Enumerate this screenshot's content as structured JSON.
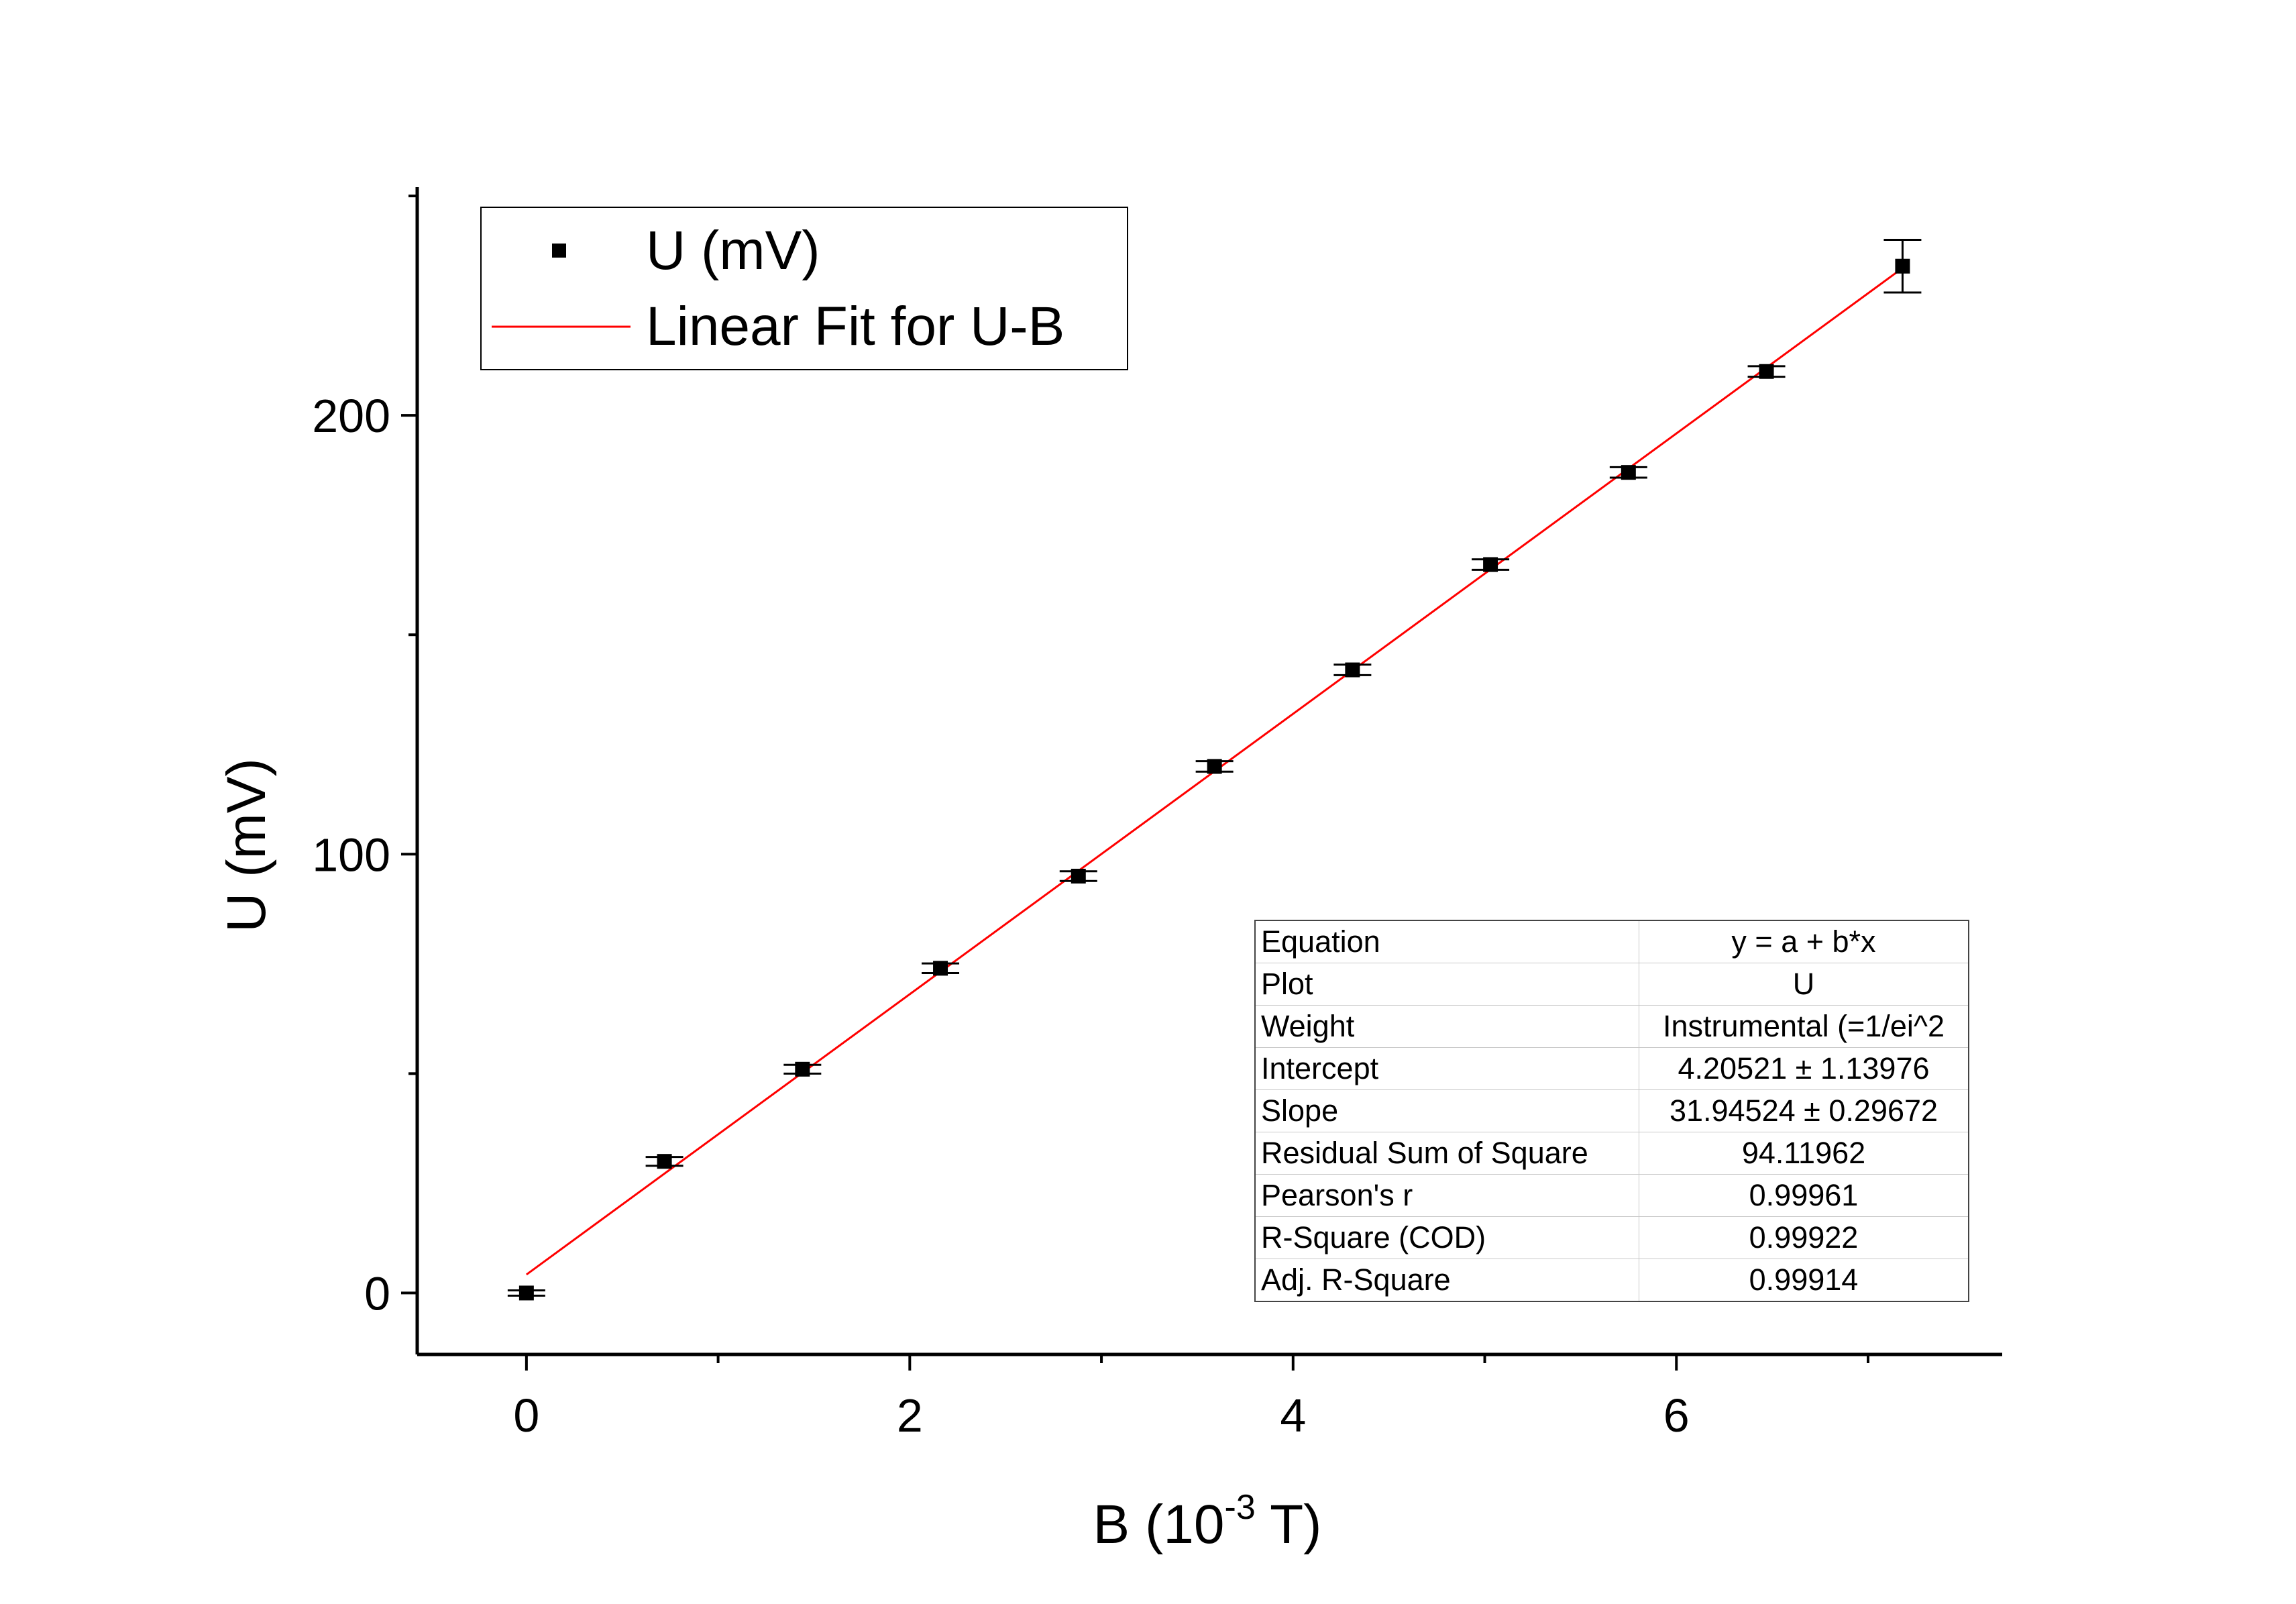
{
  "chart_data": {
    "type": "scatter",
    "xlabel": "B (10",
    "xlabel_sup": "-3",
    "xlabel_end": " T)",
    "ylabel": "U (mV)",
    "xlim": [
      -0.57,
      7.7
    ],
    "ylim": [
      -14,
      252
    ],
    "xticks": [
      0,
      2,
      4,
      6
    ],
    "xticks_minor": [
      1,
      3,
      5,
      7
    ],
    "yticks": [
      0,
      100,
      200
    ],
    "yticks_minor": [
      50,
      150,
      250
    ],
    "grid": false,
    "legend_position": "top-left",
    "series": [
      {
        "name": "U (mV)",
        "kind": "points-with-errorbars",
        "color": "#000000",
        "x": [
          0,
          0.72,
          1.44,
          2.16,
          2.88,
          3.59,
          4.31,
          5.03,
          5.75,
          6.47,
          7.18
        ],
        "y": [
          0,
          30,
          51,
          74,
          95,
          120,
          142,
          166,
          187,
          210,
          234
        ],
        "yerr": [
          0.6,
          1.0,
          1.0,
          1.1,
          1.1,
          1.2,
          1.2,
          1.2,
          1.2,
          1.2,
          6.0
        ]
      },
      {
        "name": "Linear Fit for U-B",
        "kind": "line",
        "color": "#ff0000",
        "x": [
          0,
          7.18
        ],
        "y": [
          4.20521,
          233.57
        ]
      }
    ]
  },
  "fit_table": {
    "rows": [
      {
        "label": "Equation",
        "value": "y = a + b*x"
      },
      {
        "label": "Plot",
        "value": "U"
      },
      {
        "label": "Weight",
        "value": "Instrumental (=1/ei^2"
      },
      {
        "label": "Intercept",
        "value": "4.20521 ± 1.13976"
      },
      {
        "label": "Slope",
        "value": "31.94524 ± 0.29672"
      },
      {
        "label": "Residual Sum of Square",
        "value": "94.11962"
      },
      {
        "label": "Pearson's r",
        "value": "0.99961"
      },
      {
        "label": "R-Square (COD)",
        "value": "0.99922"
      },
      {
        "label": "Adj. R-Square",
        "value": "0.99914"
      }
    ]
  }
}
